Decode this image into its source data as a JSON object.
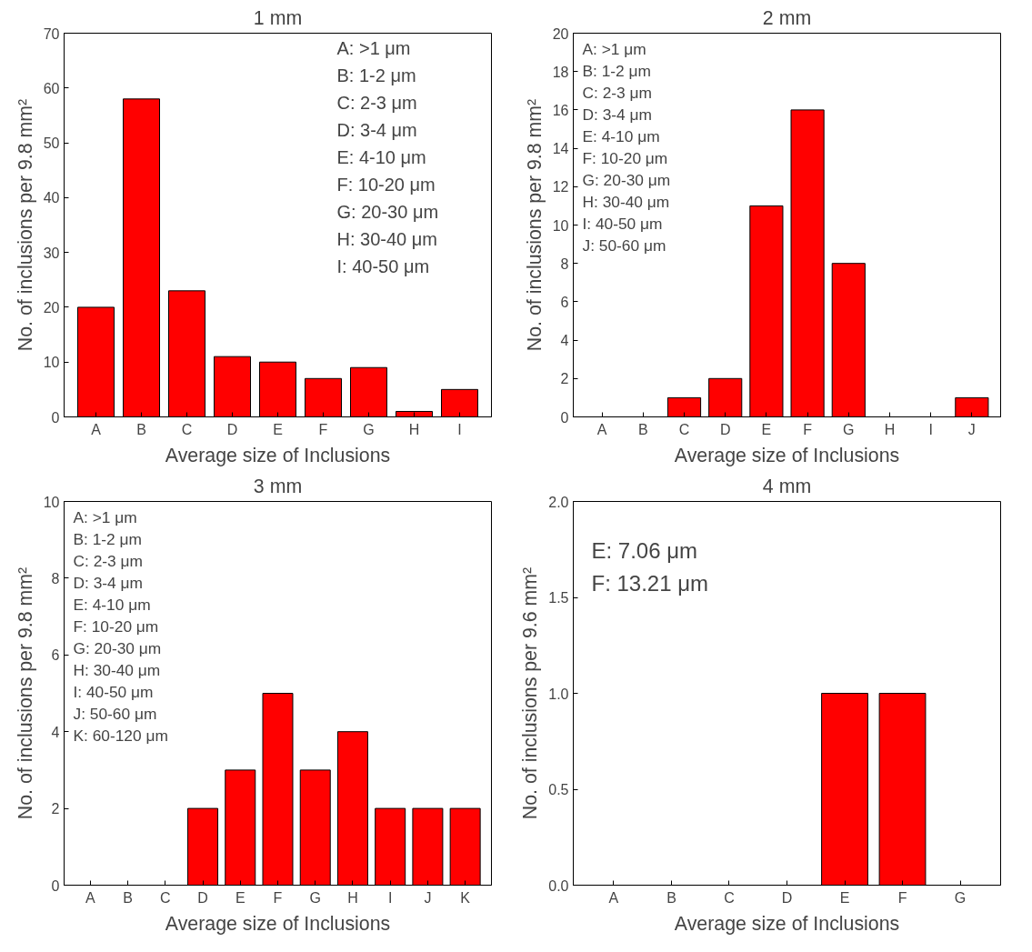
{
  "chart_data": [
    {
      "type": "bar",
      "title": "1 mm",
      "xlabel": "Average size of Inclusions",
      "ylabel": "No. of inclusions per 9.8 mm²",
      "categories": [
        "A",
        "B",
        "C",
        "D",
        "E",
        "F",
        "G",
        "H",
        "I"
      ],
      "values": [
        20,
        58,
        23,
        11,
        10,
        7,
        9,
        1,
        5
      ],
      "color": "#ff0000",
      "ylim": [
        0,
        70
      ],
      "yticks": [
        0,
        10,
        20,
        30,
        40,
        50,
        60,
        70
      ],
      "grid": false,
      "annotations": [
        "A: >1 μm",
        "B: 1-2 μm",
        "C: 2-3 μm",
        "D: 3-4 μm",
        "E: 4-10 μm",
        "F: 10-20 μm",
        "G: 20-30 μm",
        "H: 30-40 μm",
        " I: 40-50 μm"
      ]
    },
    {
      "type": "bar",
      "title": "2 mm",
      "xlabel": "Average size of Inclusions",
      "ylabel": "No. of inclusions per 9.8 mm²",
      "categories": [
        "A",
        "B",
        "C",
        "D",
        "E",
        "F",
        "G",
        "H",
        "I",
        "J"
      ],
      "values": [
        0,
        0,
        1,
        2,
        11,
        16,
        8,
        0,
        0,
        1
      ],
      "color": "#ff0000",
      "ylim": [
        0,
        20
      ],
      "yticks": [
        0,
        2,
        4,
        6,
        8,
        10,
        12,
        14,
        16,
        18,
        20
      ],
      "grid": false,
      "annotations": [
        "A: >1 μm",
        "B: 1-2 μm",
        "C: 2-3 μm",
        "D: 3-4 μm",
        "E: 4-10 μm",
        "F: 10-20 μm",
        "G: 20-30 μm",
        "H: 30-40 μm",
        " I: 40-50 μm",
        "J: 50-60 μm"
      ]
    },
    {
      "type": "bar",
      "title": "3 mm",
      "xlabel": "Average size of Inclusions",
      "ylabel": "No. of inclusions per 9.8 mm²",
      "categories": [
        "A",
        "B",
        "C",
        "D",
        "E",
        "F",
        "G",
        "H",
        "I",
        "J",
        "K"
      ],
      "values": [
        0,
        0,
        0,
        2,
        3,
        5,
        3,
        4,
        2,
        2,
        2
      ],
      "color": "#ff0000",
      "ylim": [
        0,
        10
      ],
      "yticks": [
        0,
        2,
        4,
        6,
        8,
        10
      ],
      "grid": false,
      "annotations": [
        "A: >1 μm",
        "B: 1-2 μm",
        "C: 2-3 μm",
        "D: 3-4 μm",
        "E: 4-10 μm",
        "F: 10-20 μm",
        "G: 20-30 μm",
        "H: 30-40 μm",
        " I: 40-50 μm",
        "J: 50-60 μm",
        "K: 60-120 μm"
      ]
    },
    {
      "type": "bar",
      "title": "4 mm",
      "xlabel": "Average size of Inclusions",
      "ylabel": "No. of inclusions per 9.6 mm²",
      "categories": [
        "A",
        "B",
        "C",
        "D",
        "E",
        "F",
        "G"
      ],
      "values": [
        0,
        0,
        0,
        0,
        1,
        1,
        0
      ],
      "color": "#ff0000",
      "ylim": [
        0,
        2
      ],
      "yticks": [
        {
          "value": 0,
          "label": "0.0"
        },
        {
          "value": 0.5,
          "label": "0.5"
        },
        {
          "value": 1,
          "label": "1.0"
        },
        {
          "value": 1.5,
          "label": "1.5"
        },
        {
          "value": 2,
          "label": "2.0"
        }
      ],
      "grid": false,
      "annotations": [
        "E: 7.06 μm",
        "F: 13.21 μm"
      ]
    }
  ]
}
